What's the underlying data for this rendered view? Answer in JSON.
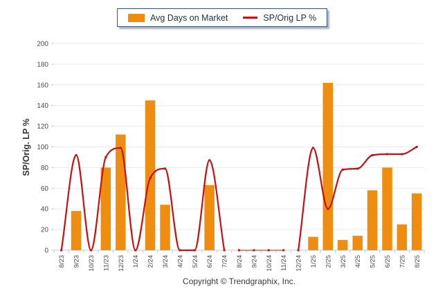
{
  "legend": {
    "bar_label": "Avg Days on Market",
    "line_label": "SP/Orig LP %"
  },
  "footer": {
    "copyright": "Copyright © Trendgraphix, Inc."
  },
  "colors": {
    "bar": "#EF8D10",
    "line": "#C51112",
    "grid": "#E9E9E9",
    "axis": "#C9C9C9",
    "tick_text": "#4A4A4A",
    "axis_title_text": "#333333",
    "legend_border": "#32517B",
    "legend_text": "#1C2E4A"
  },
  "chart_data": {
    "type": "combo",
    "title": "",
    "xlabel": "",
    "ylabel": "SP/Orig. LP %",
    "ylim": [
      0,
      200
    ],
    "y_ticks": [
      0,
      20,
      40,
      60,
      80,
      100,
      120,
      140,
      160,
      180,
      200
    ],
    "grid": "horizontal-only",
    "legend_position": "top-center",
    "categories": [
      "8/23",
      "9/23",
      "10/23",
      "11/23",
      "12/23",
      "1/24",
      "2/24",
      "3/24",
      "4/24",
      "5/24",
      "6/24",
      "7/24",
      "8/24",
      "9/24",
      "10/24",
      "11/24",
      "12/24",
      "1/25",
      "2/25",
      "3/25",
      "4/25",
      "5/25",
      "6/25",
      "7/25",
      "8/25"
    ],
    "series": [
      {
        "name": "Avg Days on Market",
        "type": "bar",
        "color": "#EF8D10",
        "values": [
          null,
          38,
          null,
          80,
          112,
          null,
          145,
          44,
          null,
          null,
          63,
          null,
          null,
          null,
          null,
          null,
          null,
          13,
          162,
          10,
          14,
          58,
          80,
          25,
          55
        ]
      },
      {
        "name": "SP/Orig LP %",
        "type": "line",
        "color": "#C51112",
        "values": [
          0,
          92,
          0,
          90,
          99,
          0,
          70,
          79,
          0,
          0,
          87,
          0,
          0,
          0,
          0,
          0,
          0,
          99,
          40,
          78,
          79,
          92,
          93,
          93,
          100
        ],
        "segments": [
          {
            "from": 0,
            "to": 11,
            "width": 2.2
          },
          {
            "from": 12,
            "to": 15,
            "width": 1
          },
          {
            "from": 16,
            "to": 24,
            "width": 2.2
          }
        ]
      }
    ]
  }
}
